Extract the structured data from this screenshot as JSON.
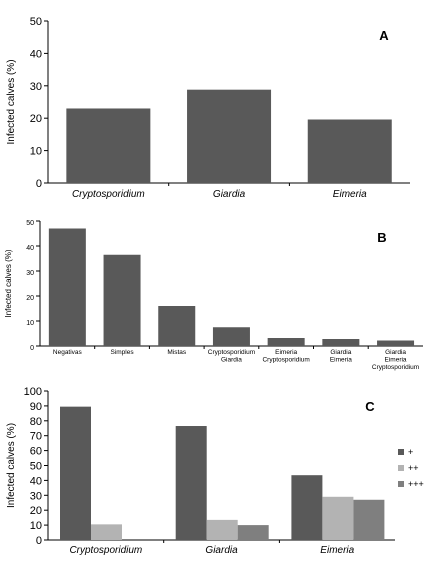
{
  "chart_data": [
    {
      "type": "bar",
      "panel_label": "A",
      "ylabel": "Infected calves (%)",
      "ylim": [
        0,
        50
      ],
      "yticks": [
        0,
        10,
        20,
        30,
        40,
        50
      ],
      "categories": [
        "Cryptosporidium",
        "Giardia",
        "Eimeria"
      ],
      "values": [
        23,
        28.8,
        19.6
      ],
      "grid": false,
      "color": "#595959"
    },
    {
      "type": "bar",
      "panel_label": "B",
      "ylabel": "Infected calves (%)",
      "ylim": [
        0,
        50
      ],
      "yticks": [
        0,
        10,
        20,
        30,
        40,
        50
      ],
      "categories": [
        [
          "Negativas"
        ],
        [
          "Simples"
        ],
        [
          "Mistas"
        ],
        [
          "Cryptosporidium",
          "Giardia"
        ],
        [
          "Eimeria",
          "Cryptosporidium"
        ],
        [
          "Giardia",
          "Eimeria"
        ],
        [
          "Giardia",
          "Eimeria",
          "Cryptosporidium"
        ]
      ],
      "values": [
        47,
        36.5,
        16,
        7.5,
        3.2,
        2.8,
        2.2
      ],
      "grid": false,
      "color": "#595959"
    },
    {
      "type": "bar",
      "panel_label": "C",
      "ylabel": "Infected calves (%)",
      "ylim": [
        0,
        100
      ],
      "yticks": [
        0,
        10,
        20,
        30,
        40,
        50,
        60,
        70,
        80,
        90,
        100
      ],
      "categories": [
        "Cryptosporidium",
        "Giardia",
        "Eimeria"
      ],
      "series": [
        {
          "name": "+",
          "color": "#595959",
          "values": [
            89.5,
            76.5,
            43.5
          ]
        },
        {
          "name": "++",
          "color": "#b3b3b3",
          "values": [
            10.5,
            13.5,
            29
          ]
        },
        {
          "name": "+++",
          "color": "#7f7f7f",
          "values": [
            0,
            10,
            27
          ]
        }
      ],
      "legend": "right",
      "grid": false
    }
  ]
}
